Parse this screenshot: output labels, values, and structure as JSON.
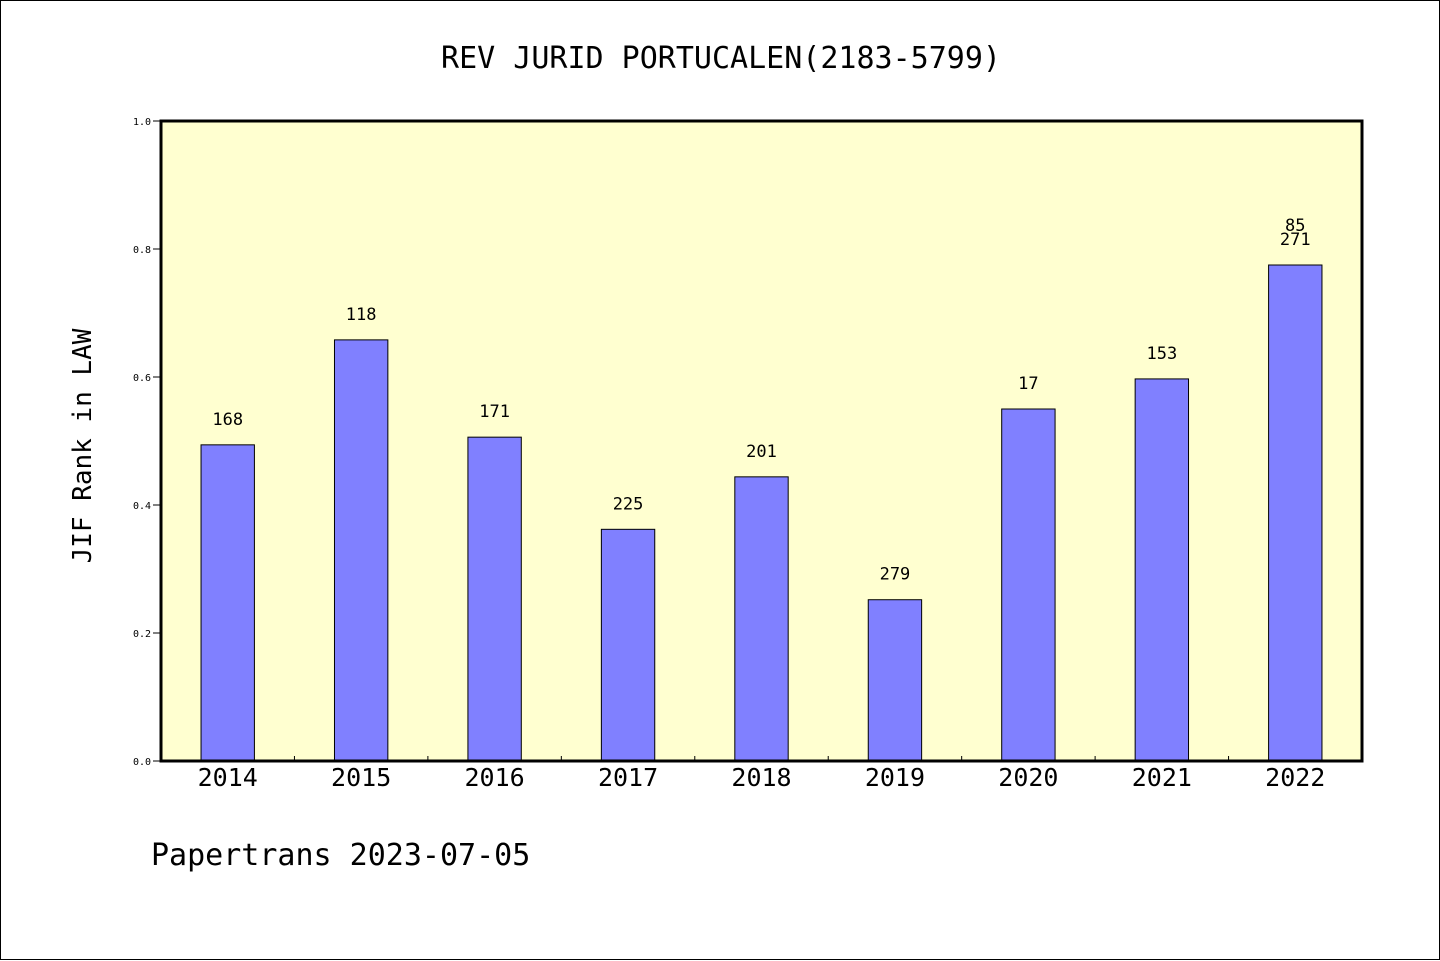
{
  "chart_data": {
    "type": "bar",
    "title": "REV JURID PORTUCALEN(2183-5799)",
    "xlabel": "",
    "ylabel": "JIF Rank in LAW",
    "ylim": [
      0,
      1.0
    ],
    "yticks": [
      "0.0",
      "0.2",
      "0.4",
      "0.6",
      "0.8",
      "1.0"
    ],
    "ytick_values": [
      0,
      0.2,
      0.4,
      0.6,
      0.8,
      1.0
    ],
    "categories": [
      "2014",
      "2015",
      "2016",
      "2017",
      "2018",
      "2019",
      "2020",
      "2021",
      "2022"
    ],
    "values": [
      0.494,
      0.658,
      0.506,
      0.362,
      0.444,
      0.252,
      0.55,
      0.597,
      0.775
    ],
    "bar_labels": [
      "168",
      "118",
      "171",
      "225",
      "201",
      "279",
      "17",
      "153",
      "271"
    ],
    "bar_labels_extra": [
      "",
      "",
      "",
      "",
      "",
      "",
      "",
      "",
      "85"
    ],
    "grid": false,
    "colors": {
      "plot_background": "#ffffd0",
      "bar_fill": "#8080ff",
      "bar_stroke": "#000000"
    }
  },
  "footer": {
    "text": "Papertrans 2023-07-05"
  }
}
